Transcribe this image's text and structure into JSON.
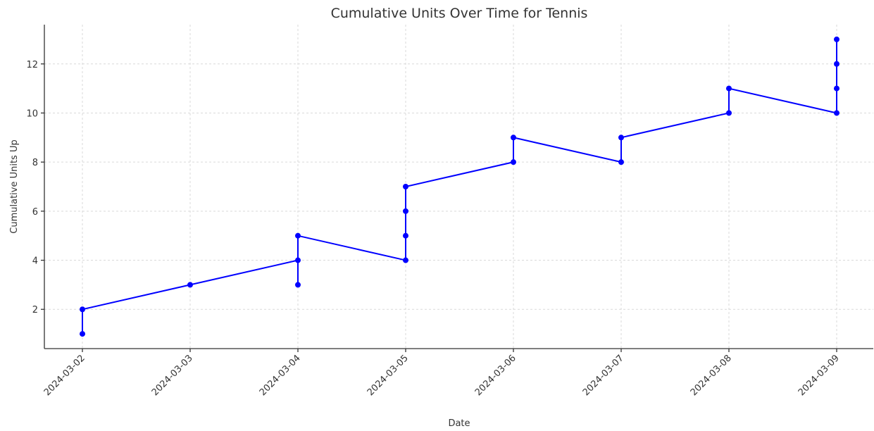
{
  "chart_data": {
    "type": "line",
    "title": "Cumulative Units Over Time for Tennis",
    "xlabel": "Date",
    "ylabel": "Cumulative Units Up",
    "x": [
      "2024-03-02",
      "2024-03-02",
      "2024-03-03",
      "2024-03-04",
      "2024-03-04",
      "2024-03-04",
      "2024-03-05",
      "2024-03-05",
      "2024-03-05",
      "2024-03-05",
      "2024-03-06",
      "2024-03-06",
      "2024-03-07",
      "2024-03-07",
      "2024-03-08",
      "2024-03-08",
      "2024-03-09",
      "2024-03-09",
      "2024-03-09",
      "2024-03-09"
    ],
    "series": [
      {
        "name": "Tennis",
        "color": "#0000ff",
        "values": [
          1,
          2,
          3,
          4,
          3,
          5,
          4,
          5,
          6,
          7,
          8,
          9,
          8,
          9,
          10,
          11,
          10,
          11,
          12,
          13
        ]
      }
    ],
    "xticks": [
      "2024-03-02",
      "2024-03-03",
      "2024-03-04",
      "2024-03-05",
      "2024-03-06",
      "2024-03-07",
      "2024-03-08",
      "2024-03-09"
    ],
    "ylim": [
      0.4,
      13.6
    ],
    "yticks": [
      2,
      4,
      6,
      8,
      10,
      12
    ],
    "grid": true
  }
}
